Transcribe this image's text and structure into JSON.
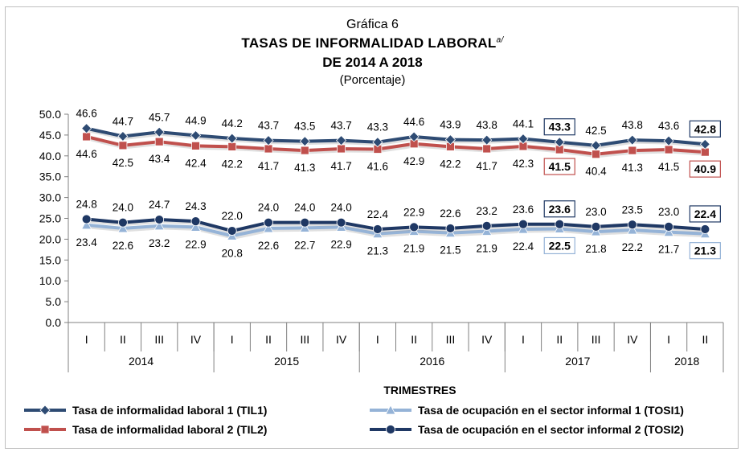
{
  "title": {
    "line1": "Gráfica 6",
    "line2": "TASAS DE INFORMALIDAD LABORAL",
    "superscript": "a/",
    "line3": "DE 2014 A 2018",
    "line4": "(Porcentaje)"
  },
  "chart_data": {
    "type": "line",
    "xlabel": "TRIMESTRES",
    "ylabel": "",
    "ylim": [
      0,
      50
    ],
    "yticks": [
      "0.0",
      "5.0",
      "10.0",
      "15.0",
      "20.0",
      "25.0",
      "30.0",
      "35.0",
      "40.0",
      "45.0",
      "50.0"
    ],
    "categories": [
      "I",
      "II",
      "III",
      "IV",
      "I",
      "II",
      "III",
      "IV",
      "I",
      "II",
      "III",
      "IV",
      "I",
      "II",
      "III",
      "IV",
      "I",
      "II"
    ],
    "years": [
      {
        "label": "2014",
        "count": 4
      },
      {
        "label": "2015",
        "count": 4
      },
      {
        "label": "2016",
        "count": 4
      },
      {
        "label": "2017",
        "count": 4
      },
      {
        "label": "2018",
        "count": 2
      }
    ],
    "series": [
      {
        "name": "Tasa de informalidad laboral 1 (TIL1)",
        "color": "#2E4B73",
        "marker": "diamond",
        "label_pos": "above",
        "values": [
          46.6,
          44.7,
          45.7,
          44.9,
          44.2,
          43.7,
          43.5,
          43.7,
          43.3,
          44.6,
          43.9,
          43.8,
          44.1,
          43.3,
          42.5,
          43.8,
          43.6,
          42.8
        ],
        "boxed": [
          13,
          17
        ],
        "box_color": "#1F3864"
      },
      {
        "name": "Tasa de informalidad laboral 2 (TIL2)",
        "color": "#C0504D",
        "marker": "square",
        "label_pos": "below",
        "values": [
          44.6,
          42.5,
          43.4,
          42.4,
          42.2,
          41.7,
          41.3,
          41.7,
          41.6,
          42.9,
          42.2,
          41.7,
          42.3,
          41.5,
          40.4,
          41.3,
          41.5,
          40.9
        ],
        "boxed": [
          13,
          17
        ],
        "box_color": "#C0504D"
      },
      {
        "name": "Tasa de ocupación en el sector informal 1 (TOSI1)",
        "color": "#95B3D7",
        "marker": "triangle",
        "label_pos": "below",
        "values": [
          23.4,
          22.6,
          23.2,
          22.9,
          20.8,
          22.6,
          22.7,
          22.9,
          21.3,
          21.9,
          21.5,
          21.9,
          22.4,
          22.5,
          21.8,
          22.2,
          21.7,
          21.3
        ],
        "boxed": [
          13,
          17
        ],
        "box_color": "#95B3D7"
      },
      {
        "name": "Tasa de ocupación en el sector informal 2 (TOSI2)",
        "color": "#1F3864",
        "marker": "circle",
        "label_pos": "above",
        "values": [
          24.8,
          24.0,
          24.7,
          24.3,
          22.0,
          24.0,
          24.0,
          24.0,
          22.4,
          22.9,
          22.6,
          23.2,
          23.6,
          23.6,
          23.0,
          23.5,
          23.0,
          22.4
        ],
        "boxed": [
          13,
          17
        ],
        "box_color": "#1F3864"
      }
    ],
    "legend_position": "bottom"
  }
}
